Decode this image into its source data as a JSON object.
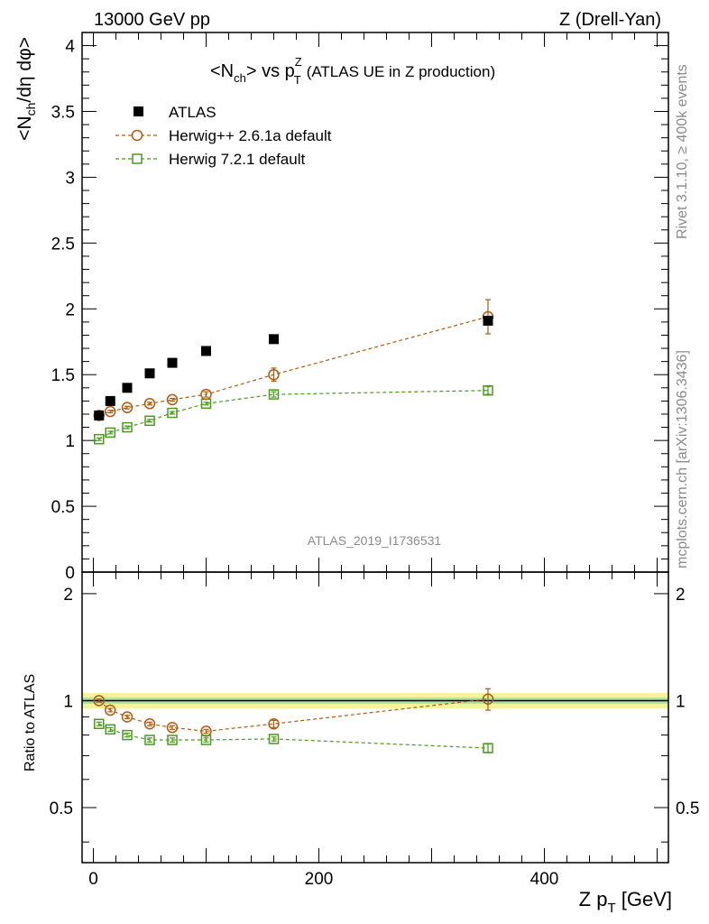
{
  "header": {
    "left": "13000 GeV pp",
    "right": "Z (Drell-Yan)"
  },
  "side_text": {
    "rivet": "Rivet 3.1.10, ≥ 400k events",
    "source": "mcplots.cern.ch [arXiv:1306.3436]"
  },
  "watermark": "ATLAS_2019_I1736531",
  "chart_data": [
    {
      "type": "scatter",
      "title": "<N_ch> vs p_T^Z (ATLAS UE in Z production)",
      "title_parts": {
        "a": "<N",
        "a_sub": "ch",
        "b": "> vs p",
        "b_sup": "Z",
        "b_sub": "T",
        "c": "(ATLAS UE in Z production)"
      },
      "ylabel": "<N_ch/dη dφ>",
      "ylabel_parts": {
        "a": "<N",
        "a_sub": "ch",
        "b": "/dη dφ>"
      },
      "xlim": [
        -10,
        510
      ],
      "ylim": [
        0,
        4.1
      ],
      "yticks": [
        0,
        0.5,
        1,
        1.5,
        2,
        2.5,
        3,
        3.5,
        4
      ],
      "ytick_labels": [
        "0",
        "0.5",
        "1",
        "1.5",
        "2",
        "2.5",
        "3",
        "3.5",
        "4"
      ],
      "legend_position": "top-left",
      "series": [
        {
          "name": "ATLAS",
          "color": "#000000",
          "marker": "filled-square",
          "x": [
            5,
            15,
            30,
            50,
            70,
            100,
            160,
            350
          ],
          "y": [
            1.19,
            1.3,
            1.4,
            1.51,
            1.59,
            1.68,
            1.77,
            1.91
          ],
          "yerr": [
            0.01,
            0.01,
            0.01,
            0.01,
            0.01,
            0.01,
            0.01,
            0.02
          ]
        },
        {
          "name": "Herwig++ 2.6.1a default",
          "color": "#b05a10",
          "marker": "open-circle",
          "line": "dashed",
          "x": [
            5,
            15,
            30,
            50,
            70,
            100,
            160,
            350
          ],
          "y": [
            1.19,
            1.22,
            1.25,
            1.28,
            1.31,
            1.35,
            1.5,
            1.94
          ],
          "yerr": [
            0.01,
            0.01,
            0.01,
            0.01,
            0.01,
            0.02,
            0.05,
            0.13
          ]
        },
        {
          "name": "Herwig 7.2.1 default",
          "color": "#4a9a1e",
          "marker": "open-square",
          "line": "dashed",
          "x": [
            5,
            15,
            30,
            50,
            70,
            100,
            160,
            350
          ],
          "y": [
            1.01,
            1.06,
            1.1,
            1.15,
            1.21,
            1.28,
            1.35,
            1.38
          ],
          "yerr": [
            0.01,
            0.01,
            0.01,
            0.01,
            0.01,
            0.01,
            0.02,
            0.03
          ]
        }
      ]
    },
    {
      "type": "scatter",
      "ylabel": "Ratio to ATLAS",
      "xlabel": "Z p_T [GeV]",
      "xlabel_parts": {
        "a": "Z p",
        "a_sub": "T",
        "b": " [GeV]"
      },
      "xlim": [
        -10,
        510
      ],
      "ylim": [
        0.35,
        2.3
      ],
      "xticks": [
        0,
        200,
        400
      ],
      "xtick_labels": [
        "0",
        "200",
        "400"
      ],
      "yticks": [
        0.5,
        1,
        2
      ],
      "ytick_labels": [
        "0.5",
        "1",
        "2"
      ],
      "reference_band": {
        "center": 1.0,
        "inner": 0.02,
        "outer": 0.05
      },
      "series": [
        {
          "name": "Herwig++ 2.6.1a default",
          "color": "#b05a10",
          "marker": "open-circle",
          "line": "dashed",
          "x": [
            5,
            15,
            30,
            50,
            70,
            100,
            160,
            350
          ],
          "y": [
            1.0,
            0.94,
            0.9,
            0.86,
            0.84,
            0.82,
            0.86,
            1.01
          ],
          "yerr": [
            0.01,
            0.01,
            0.01,
            0.01,
            0.01,
            0.01,
            0.02,
            0.07
          ]
        },
        {
          "name": "Herwig 7.2.1 default",
          "color": "#4a9a1e",
          "marker": "open-square",
          "line": "dashed",
          "x": [
            5,
            15,
            30,
            50,
            70,
            100,
            160,
            350
          ],
          "y": [
            0.86,
            0.83,
            0.8,
            0.775,
            0.775,
            0.775,
            0.78,
            0.735
          ],
          "yerr": [
            0.01,
            0.01,
            0.01,
            0.01,
            0.01,
            0.01,
            0.01,
            0.02
          ]
        }
      ]
    }
  ]
}
